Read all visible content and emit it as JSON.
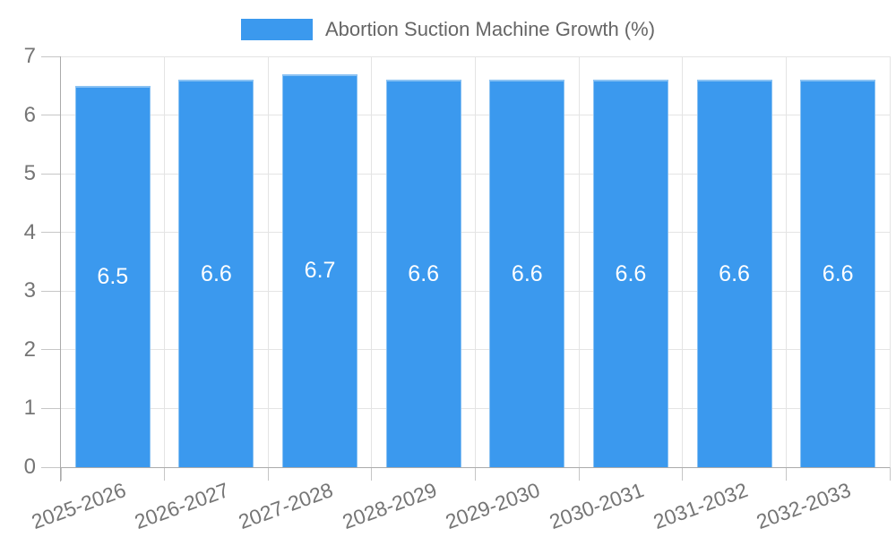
{
  "chart_data": {
    "type": "bar",
    "title": "Abortion Suction Machine Growth (%)",
    "categories": [
      "2025-2026",
      "2026-2027",
      "2027-2028",
      "2028-2029",
      "2029-2030",
      "2030-2031",
      "2031-2032",
      "2032-2033"
    ],
    "values": [
      6.5,
      6.6,
      6.7,
      6.6,
      6.6,
      6.6,
      6.6,
      6.6
    ],
    "value_labels": [
      "6.5",
      "6.6",
      "6.7",
      "6.6",
      "6.6",
      "6.6",
      "6.6",
      "6.6"
    ],
    "xlabel": "",
    "ylabel": "",
    "ylim": [
      0,
      7
    ],
    "ytick_step": 1,
    "yticks": [
      0,
      1,
      2,
      3,
      4,
      5,
      6,
      7
    ],
    "grid": true,
    "legend_position": "top",
    "x_label_rotation_deg": -20,
    "colors": {
      "bar": "#3B99EE",
      "bar_border": "#8AC2F3",
      "grid": "#E4E4E4",
      "axis": "#ABABAB",
      "tick_mark": "#C6C6C6",
      "tick_label": "#757575",
      "title": "#666666",
      "value_label": "#FFFFFF"
    }
  }
}
